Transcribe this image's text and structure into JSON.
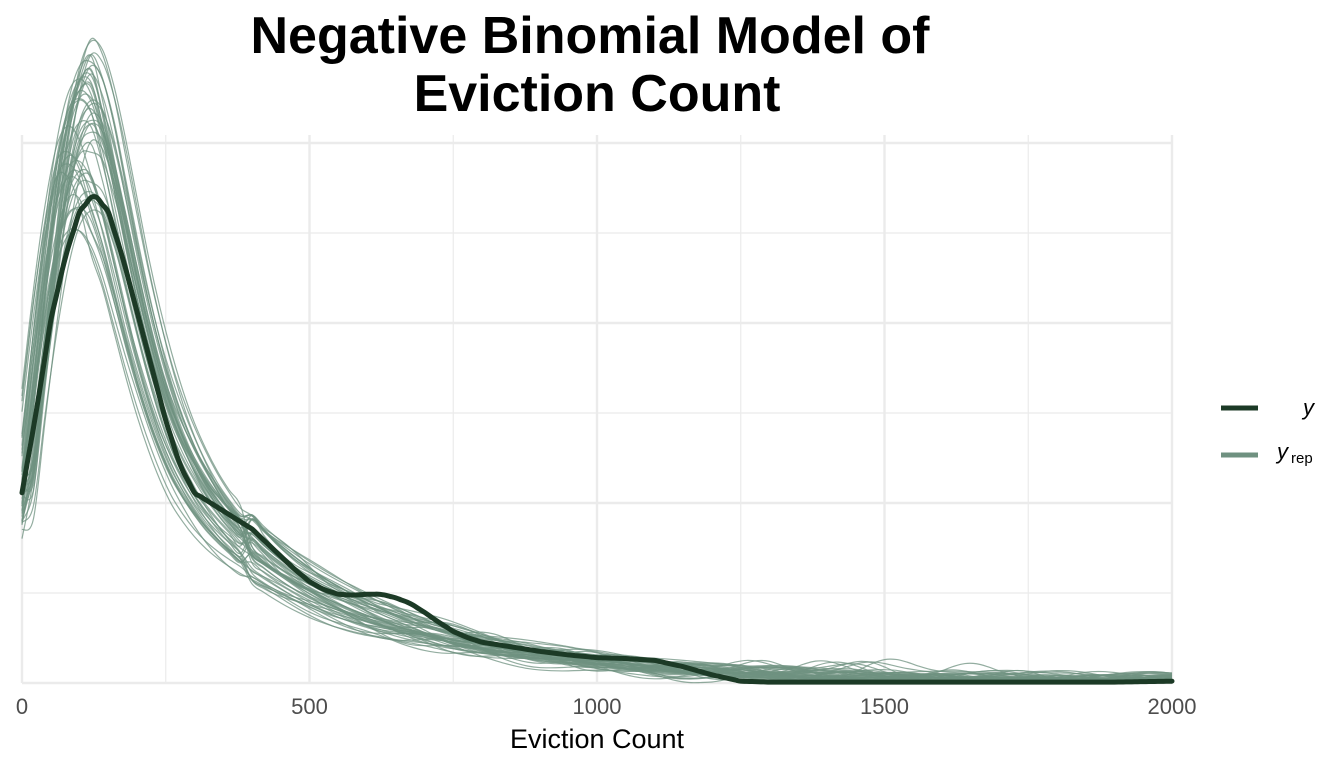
{
  "chart_data": {
    "type": "line",
    "title_lines": [
      "Negative Binomial Model of",
      "Eviction Count"
    ],
    "xlabel": "Eviction Count",
    "ylabel": "",
    "xlim": [
      0,
      2000
    ],
    "x_ticks": [
      0,
      500,
      1000,
      1500,
      2000
    ],
    "x_tick_labels": [
      "0",
      "500",
      "1000",
      "1500",
      "2000"
    ],
    "y_tick_labels_shown": false,
    "grid": true,
    "legend_position": "right",
    "legend": [
      {
        "key": "y",
        "label": "y",
        "subscript": ""
      },
      {
        "key": "yrep",
        "label": "y",
        "subscript": "rep"
      }
    ],
    "colors": {
      "y": "#1c3a26",
      "yrep": "#6f9180",
      "grid": "#ebebeb"
    },
    "yrep_draw_count": 50,
    "series": [
      {
        "key": "y",
        "x": [
          0,
          25,
          50,
          75,
          100,
          125,
          150,
          175,
          200,
          225,
          250,
          275,
          300,
          325,
          350,
          375,
          400,
          425,
          450,
          475,
          500,
          525,
          550,
          575,
          600,
          625,
          650,
          675,
          700,
          725,
          750,
          775,
          800,
          850,
          900,
          950,
          1000,
          1050,
          1100,
          1150,
          1200,
          1250,
          1300,
          1400,
          1500,
          1600,
          1700,
          1800,
          1900,
          2000
        ],
        "y": [
          0.0021,
          0.003,
          0.004,
          0.0047,
          0.0052,
          0.0054,
          0.0052,
          0.0047,
          0.0041,
          0.0035,
          0.0029,
          0.0024,
          0.0021,
          0.002,
          0.0019,
          0.0018,
          0.0017,
          0.00155,
          0.0014,
          0.00125,
          0.00112,
          0.00103,
          0.00098,
          0.00097,
          0.00098,
          0.00098,
          0.00094,
          0.00088,
          0.00078,
          0.00067,
          0.00057,
          0.0005,
          0.00045,
          0.0004,
          0.00035,
          0.00031,
          0.00028,
          0.00027,
          0.00025,
          0.00018,
          9e-05,
          2e-05,
          1e-05,
          1e-05,
          1e-05,
          1e-05,
          1e-05,
          1e-05,
          1e-05,
          2e-05
        ]
      }
    ],
    "yrep_mean": {
      "x": [
        0,
        25,
        50,
        75,
        100,
        125,
        150,
        175,
        200,
        225,
        250,
        275,
        300,
        325,
        350,
        375,
        400,
        425,
        450,
        475,
        500,
        525,
        550,
        575,
        600,
        625,
        650,
        675,
        700,
        725,
        750,
        775,
        800,
        850,
        900,
        950,
        1000,
        1050,
        1100,
        1150,
        1200,
        1250,
        1300,
        1400,
        1500,
        1600,
        1700,
        1800,
        1900,
        2000
      ],
      "y": [
        0.0019,
        0.0033,
        0.0046,
        0.0056,
        0.006,
        0.0059,
        0.0054,
        0.0047,
        0.004,
        0.0034,
        0.0029,
        0.0025,
        0.0022,
        0.00195,
        0.00175,
        0.00158,
        0.00143,
        0.0013,
        0.00119,
        0.00109,
        0.001,
        0.00092,
        0.00085,
        0.00079,
        0.00073,
        0.00068,
        0.00063,
        0.00058,
        0.00054,
        0.0005,
        0.00046,
        0.00043,
        0.0004,
        0.00035,
        0.0003,
        0.00026,
        0.00023,
        0.0002,
        0.00017,
        0.00014,
        0.00012,
        0.0001,
        9e-05,
        7e-05,
        6e-05,
        5e-05,
        4e-05,
        3e-05,
        3e-05,
        3e-05
      ]
    }
  }
}
